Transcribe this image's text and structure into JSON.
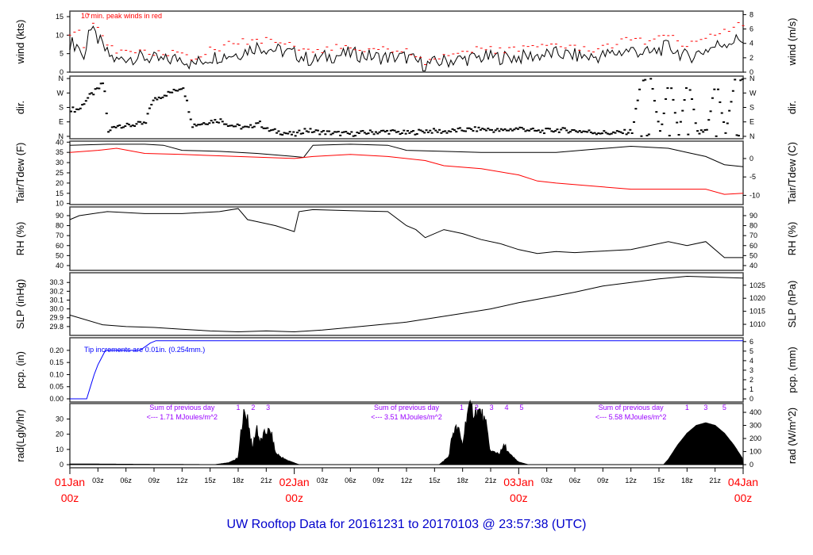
{
  "title": "UW Rooftop Data for 20161231  to  20170103 @ 23:57:38  (UTC)",
  "colors": {
    "text": "#000000",
    "peak": "#ff0000",
    "dew": "#ff0000",
    "pcp": "#0000ff",
    "anno": "#9900ff",
    "title": "#0000cc",
    "date": "#ff0000"
  },
  "chart_data": [
    {
      "type": "line",
      "name": "wind",
      "ylabel": "wind (kts)",
      "ylabel_right": "wind (m/s)",
      "ylim": [
        0,
        16.5
      ],
      "yticks": [
        0,
        5,
        10,
        15
      ],
      "yticks_right": [
        0,
        2,
        4,
        6,
        8
      ],
      "annotation": "10 min. peak winds in red",
      "x_hours": [
        0,
        1,
        1.5,
        2,
        3,
        4,
        5,
        6,
        8,
        10,
        12,
        13,
        15,
        18,
        20,
        22,
        24,
        26,
        27,
        30,
        33,
        36,
        38,
        40,
        44,
        48,
        52,
        56,
        60,
        62,
        64,
        66,
        68,
        70,
        72
      ],
      "series": [
        {
          "name": "mean wind",
          "values": [
            8,
            7,
            3,
            12,
            9,
            5,
            3,
            4,
            4,
            3,
            4,
            2,
            4,
            5,
            7,
            6,
            5,
            3,
            4,
            5,
            4,
            4,
            2,
            3,
            4,
            4,
            5,
            4,
            6,
            5,
            7,
            4,
            6,
            8,
            9
          ]
        },
        {
          "name": "peak wind",
          "values": [
            11,
            12,
            6,
            15,
            12,
            8,
            5,
            6,
            6,
            5,
            6,
            4,
            6,
            8,
            9,
            8,
            7,
            5,
            6,
            7,
            6,
            6,
            3,
            5,
            6,
            6,
            7,
            6,
            9,
            8,
            10,
            7,
            9,
            11,
            13
          ]
        }
      ]
    },
    {
      "type": "scatter",
      "name": "dir",
      "ylabel": "dir.",
      "ylabel_right": "dir.",
      "ylim": [
        -15,
        375
      ],
      "yticks": [
        0,
        90,
        180,
        270,
        360
      ],
      "ytick_labels": [
        "N",
        "E",
        "S",
        "W",
        "N"
      ],
      "x_hours": [
        0,
        0.5,
        1,
        1.5,
        2,
        2.5,
        3,
        3.5,
        4,
        4.5,
        5,
        6,
        7,
        8,
        8.5,
        9,
        9.5,
        10,
        11,
        12,
        13,
        14,
        15,
        16,
        17,
        18,
        19,
        20,
        21,
        22,
        23,
        24,
        25,
        26,
        27,
        28,
        30,
        32,
        34,
        36,
        38,
        40,
        42,
        44,
        46,
        48,
        50,
        52,
        54,
        56,
        58,
        60,
        61,
        62,
        63,
        64,
        65,
        66,
        67,
        68,
        69,
        70,
        71,
        72
      ],
      "values": [
        170,
        165,
        175,
        220,
        250,
        275,
        300,
        340,
        20,
        60,
        70,
        65,
        75,
        80,
        200,
        230,
        245,
        260,
        280,
        310,
        70,
        80,
        95,
        100,
        70,
        60,
        50,
        90,
        40,
        30,
        20,
        10,
        40,
        30,
        25,
        20,
        15,
        25,
        30,
        20,
        35,
        30,
        40,
        45,
        35,
        50,
        30,
        40,
        35,
        25,
        20,
        30,
        355,
        360,
        20,
        355,
        15,
        360,
        20,
        30,
        360,
        15,
        355,
        360
      ]
    },
    {
      "type": "line",
      "name": "temperature",
      "ylabel": "Tair/Tdew (F)",
      "ylabel_right": "Tair/Tdew (C)",
      "ylim": [
        9.5,
        40.5
      ],
      "yticks": [
        10,
        15,
        20,
        25,
        30,
        35,
        40
      ],
      "yticks_right_c": [
        0,
        -5,
        -10
      ],
      "series": [
        {
          "name": "Tair",
          "x_hours": [
            0,
            4,
            8,
            10,
            12,
            16,
            20,
            24,
            25,
            26,
            30,
            34,
            36,
            40,
            44,
            48,
            52,
            56,
            60,
            64,
            66,
            68,
            70,
            72
          ],
          "values": [
            38.5,
            39,
            39,
            38.5,
            36,
            35.5,
            34.5,
            33,
            32.5,
            38.5,
            39,
            38.5,
            36,
            35.5,
            35,
            35,
            35,
            36.5,
            38,
            37,
            35,
            33,
            29,
            28
          ]
        },
        {
          "name": "Tdew",
          "x_hours": [
            0,
            3,
            5,
            8,
            12,
            18,
            24,
            26,
            30,
            34,
            38,
            40,
            44,
            48,
            50,
            52,
            56,
            60,
            64,
            68,
            70,
            72
          ],
          "values": [
            35,
            36,
            37,
            34.5,
            34,
            33,
            32,
            33,
            34,
            33,
            31,
            28.5,
            27,
            24,
            21,
            20,
            18.5,
            17,
            17,
            17,
            14.5,
            15
          ]
        }
      ]
    },
    {
      "type": "line",
      "name": "rh",
      "ylabel": "RH (%)",
      "ylabel_right": "RH (%)",
      "ylim": [
        35.2,
        98.7
      ],
      "yticks": [
        40,
        50,
        60,
        70,
        80,
        90
      ],
      "yticks_right": [
        40,
        50,
        60,
        70,
        80,
        90
      ],
      "x_hours": [
        0,
        1,
        4,
        8,
        12,
        16,
        18,
        19,
        20,
        22,
        24,
        24.5,
        26,
        30,
        34,
        36,
        37,
        38,
        40,
        42,
        44,
        46,
        48,
        50,
        52,
        54,
        56,
        60,
        64,
        66,
        68,
        70,
        72
      ],
      "values": [
        86,
        90,
        94,
        92,
        92,
        94,
        97,
        86,
        84,
        80,
        74,
        94,
        96,
        95,
        94,
        80,
        76,
        68,
        76,
        72,
        66,
        62,
        56,
        52,
        54,
        53,
        54,
        56,
        64,
        60,
        64,
        48,
        48
      ]
    },
    {
      "type": "line",
      "name": "slp",
      "ylabel": "SLP (inHg)",
      "ylabel_right": "SLP (hPa)",
      "ylim": [
        29.7,
        30.41
      ],
      "yticks": [
        29.8,
        29.9,
        30.0,
        30.1,
        30.2,
        30.3
      ],
      "yticks_right_hpa": [
        1010,
        1015,
        1020,
        1025
      ],
      "x_hours": [
        0,
        3.5,
        6,
        9,
        12,
        15,
        18,
        21,
        24,
        27,
        30,
        33,
        36,
        39,
        42,
        45,
        48,
        51,
        54,
        57,
        60,
        63,
        66,
        69,
        72
      ],
      "values": [
        29.93,
        29.82,
        29.8,
        29.79,
        29.77,
        29.75,
        29.74,
        29.75,
        29.74,
        29.76,
        29.79,
        29.82,
        29.85,
        29.9,
        29.95,
        30.0,
        30.07,
        30.13,
        30.19,
        30.26,
        30.3,
        30.34,
        30.37,
        30.36,
        30.35
      ]
    },
    {
      "type": "line",
      "name": "precip",
      "ylabel": "pcp. (in)",
      "ylabel_right": "pcp. (mm)",
      "ylim": [
        -0.013,
        0.252
      ],
      "yticks": [
        0.0,
        0.05,
        0.1,
        0.15,
        0.2
      ],
      "ytick_labels": [
        "0.00",
        "0.05",
        "0.10",
        "0.15",
        "0.20"
      ],
      "yticks_right_mm": [
        0,
        1,
        2,
        3,
        4,
        5,
        6
      ],
      "annotation": "Tip increments are 0.01in. (0.254mm.)",
      "x_hours": [
        0,
        1.8,
        2.2,
        2.6,
        3.0,
        3.4,
        3.8,
        4.5,
        7.5,
        8.6,
        9.2,
        72
      ],
      "values": [
        0,
        0,
        0.05,
        0.1,
        0.14,
        0.17,
        0.2,
        0.2,
        0.2,
        0.23,
        0.24,
        0.24
      ]
    },
    {
      "type": "area",
      "name": "radiation",
      "ylabel": "rad(Lgly/hr)",
      "ylabel_right": "rad (W/m^2)",
      "ylim": [
        -24,
        467
      ],
      "yticks_lgly": [
        0,
        10,
        20,
        30
      ],
      "yticks_right": [
        0,
        100,
        200,
        300,
        400
      ],
      "x_hours": [
        0,
        0.8,
        15.5,
        17,
        18,
        18.5,
        19,
        19.5,
        20,
        20.3,
        21,
        21.5,
        22,
        23,
        24.5,
        39.5,
        40.5,
        41,
        41.5,
        42,
        42.5,
        43,
        44,
        44.5,
        45,
        46,
        46.5,
        47,
        48,
        49,
        63.5,
        64,
        65,
        66,
        67,
        68,
        69,
        70,
        71,
        72
      ],
      "values": [
        5,
        5,
        0,
        15,
        50,
        380,
        380,
        120,
        300,
        170,
        260,
        250,
        90,
        40,
        0,
        0,
        60,
        260,
        280,
        150,
        420,
        430,
        400,
        300,
        100,
        90,
        150,
        80,
        20,
        0,
        0,
        40,
        150,
        240,
        300,
        320,
        300,
        240,
        150,
        40
      ],
      "daily_sums": [
        {
          "label": "Sum of previous day",
          "value": "<--- 1.71 MJoules/m^2",
          "markers": [
            "1",
            "2",
            "3"
          ]
        },
        {
          "label": "Sum of previous day",
          "value": "<--- 3.51 MJoules/m^2",
          "markers": [
            "1",
            "2",
            "3",
            "4",
            "5"
          ]
        },
        {
          "label": "Sum of previous day",
          "value": "<--- 5.58 MJoules/m^2",
          "markers": [
            "1",
            "3",
            "5"
          ]
        }
      ]
    }
  ],
  "xaxis": {
    "range_hours": [
      0,
      72
    ],
    "day_labels": [
      {
        "hour": 0,
        "date": "01Jan",
        "time": "00z"
      },
      {
        "hour": 24,
        "date": "02Jan",
        "time": "00z"
      },
      {
        "hour": 48,
        "date": "03Jan",
        "time": "00z"
      },
      {
        "hour": 72,
        "date": "04Jan",
        "time": "00z"
      }
    ],
    "hour_labels": [
      "03z",
      "06z",
      "09z",
      "12z",
      "15z",
      "18z",
      "21z"
    ]
  }
}
